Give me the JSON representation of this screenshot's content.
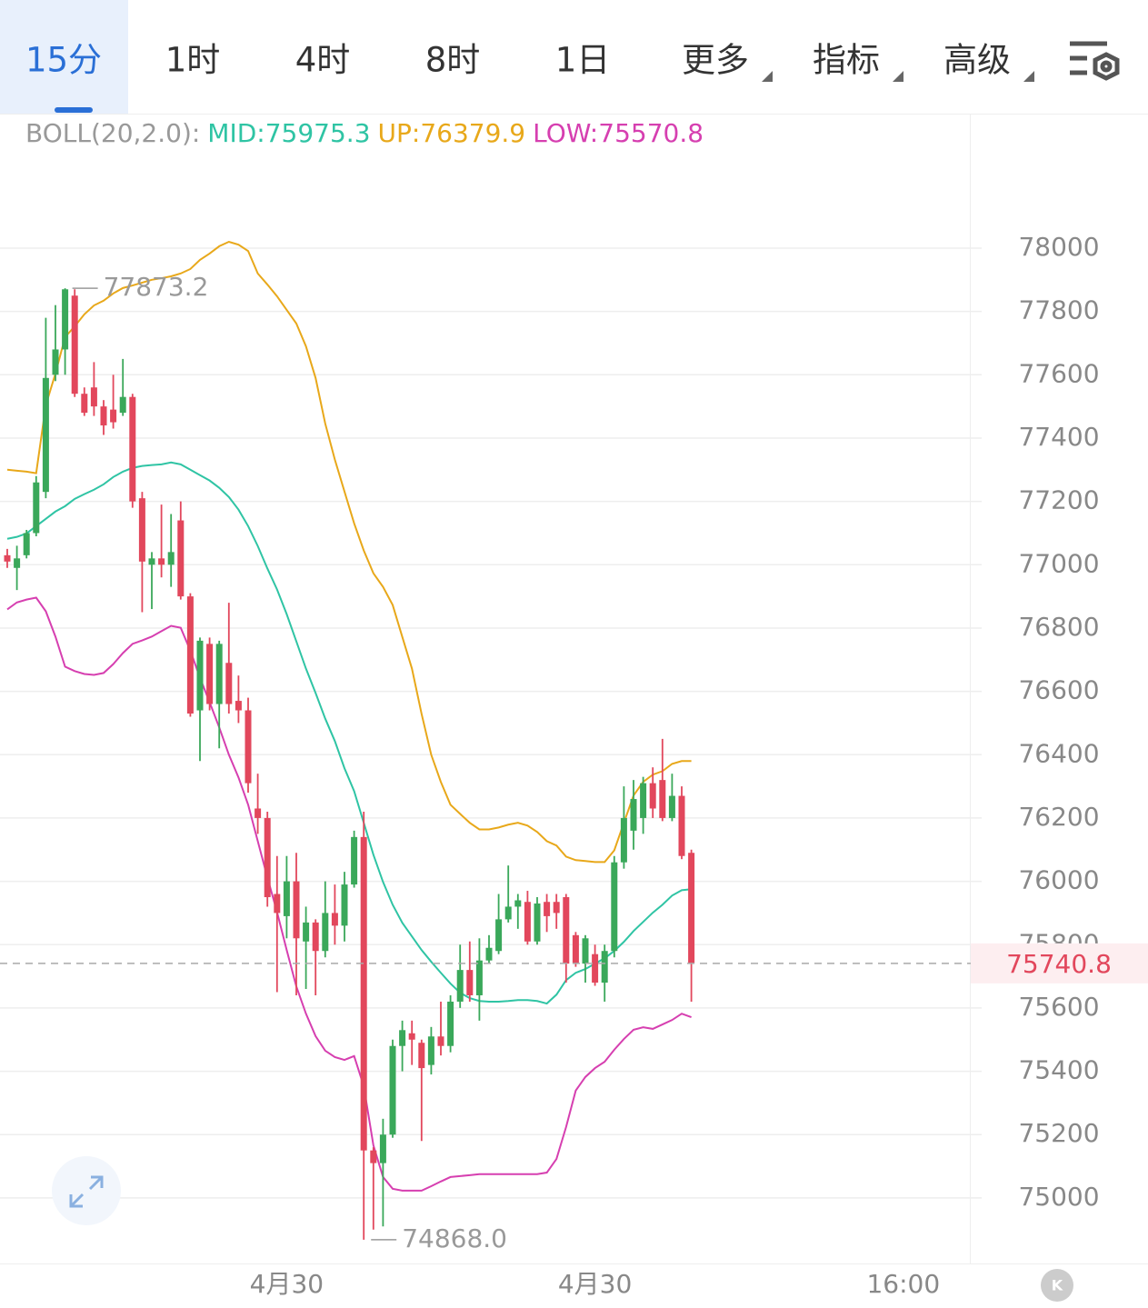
{
  "tabs": [
    "15分",
    "1时",
    "4时",
    "8时",
    "1日",
    "更多",
    "指标",
    "高级"
  ],
  "chart_data": {
    "type": "candlestick",
    "indicator_label": "BOLL(20,2.0):",
    "up_color": "#3aa85a",
    "down_color": "#e2475c",
    "open": [
      77030,
      76990,
      77030,
      77100,
      77230,
      77600,
      77680,
      77850,
      77540,
      77560,
      77500,
      77490,
      77480,
      77530,
      77210,
      77000,
      77020,
      77000,
      77140,
      76900,
      76540,
      76750,
      76560,
      76690,
      76570,
      76540,
      76230,
      76200,
      75960,
      75890,
      76000,
      75810,
      75870,
      75780,
      75900,
      75860,
      75990,
      76140,
      75150,
      75110,
      75200,
      75480,
      75520,
      75490,
      75420,
      75510,
      75480,
      75620,
      75720,
      75640,
      75750,
      75780,
      75880,
      75920,
      75935,
      75810,
      75935,
      75935,
      75950,
      75830,
      75740,
      75770,
      75680,
      75780,
      76060,
      76160,
      76200,
      76310,
      76320,
      76200,
      76270,
      76090
    ],
    "high": [
      77050,
      77060,
      77110,
      77280,
      77780,
      77820,
      77873.2,
      77870,
      77560,
      77640,
      77520,
      77600,
      77650,
      77540,
      77230,
      77040,
      77190,
      77160,
      77200,
      76910,
      76770,
      76770,
      76760,
      76880,
      76650,
      76580,
      76340,
      76220,
      76080,
      76080,
      76090,
      75920,
      75880,
      76000,
      75990,
      76030,
      76160,
      76220,
      75160,
      75250,
      75500,
      75560,
      75560,
      75500,
      75540,
      75620,
      75640,
      75800,
      75810,
      75820,
      75830,
      75960,
      76050,
      75960,
      75970,
      75950,
      75960,
      75960,
      75960,
      75840,
      75830,
      75800,
      75800,
      76080,
      76300,
      76320,
      76330,
      76360,
      76450,
      76340,
      76300,
      76100
    ],
    "low": [
      76990,
      76920,
      77020,
      77090,
      77210,
      77580,
      77600,
      77530,
      77470,
      77470,
      77410,
      77430,
      77470,
      77180,
      76850,
      76860,
      76960,
      76930,
      76890,
      76520,
      76380,
      76540,
      76420,
      76530,
      76500,
      76280,
      76150,
      75920,
      75650,
      75820,
      75640,
      75660,
      75640,
      75760,
      75800,
      75810,
      75980,
      74868,
      74900,
      74910,
      75190,
      75400,
      75420,
      75180,
      75390,
      75450,
      75460,
      75600,
      75620,
      75560,
      75740,
      75770,
      75870,
      75850,
      75800,
      75800,
      75840,
      75850,
      75680,
      75730,
      75680,
      75670,
      75620,
      75760,
      76040,
      76100,
      76150,
      76200,
      76190,
      76190,
      76070,
      75620
    ],
    "close": [
      77010,
      77020,
      77100,
      77260,
      77590,
      77680,
      77870,
      77540,
      77480,
      77500,
      77440,
      77450,
      77530,
      77200,
      77010,
      77020,
      77000,
      77040,
      76900,
      76530,
      76760,
      76560,
      76750,
      76560,
      76540,
      76310,
      76200,
      75950,
      75900,
      76000,
      75820,
      75870,
      75780,
      75900,
      75860,
      75990,
      76140,
      75150,
      75110,
      75200,
      75480,
      75530,
      75500,
      75410,
      75510,
      75480,
      75620,
      75720,
      75640,
      75750,
      75790,
      75880,
      75920,
      75940,
      75810,
      75930,
      75890,
      75900,
      75740,
      75740,
      75820,
      75680,
      75780,
      76060,
      76200,
      76260,
      76310,
      76230,
      76200,
      76270,
      76080,
      75740.8
    ],
    "series": [
      {
        "name": "MID:",
        "color": "#2fc4a4",
        "values": [
          77082,
          77088,
          77099,
          77122,
          77145,
          77168,
          77185,
          77208,
          77223,
          77237,
          77254,
          77277,
          77294,
          77306,
          77312,
          77315,
          77317,
          77323,
          77317,
          77300,
          77283,
          77266,
          77243,
          77214,
          77174,
          77122,
          77059,
          76988,
          76922,
          76844,
          76758,
          76672,
          76595,
          76514,
          76443,
          76357,
          76285,
          76185,
          76084,
          75998,
          75926,
          75869,
          75826,
          75783,
          75746,
          75711,
          75677,
          75648,
          75631,
          75622,
          75620,
          75620,
          75622,
          75625,
          75625,
          75622,
          75614,
          75642,
          75688,
          75711,
          75723,
          75740,
          75757,
          75780,
          75809,
          75843,
          75872,
          75901,
          75926,
          75955,
          75972,
          75975.3
        ]
      },
      {
        "name": "UP:",
        "color": "#e8a81a",
        "values": [
          77300,
          77297,
          77294,
          77289,
          77504,
          77604,
          77719,
          77753,
          77791,
          77819,
          77834,
          77857,
          77874,
          77882,
          77891,
          77900,
          77905,
          77911,
          77920,
          77934,
          77963,
          77983,
          78006,
          78020,
          78011,
          77991,
          77920,
          77885,
          77848,
          77805,
          77762,
          77690,
          77590,
          77446,
          77332,
          77231,
          77131,
          77045,
          76973,
          76930,
          76873,
          76772,
          76672,
          76529,
          76400,
          76314,
          76242,
          76213,
          76185,
          76164,
          76164,
          76170,
          76179,
          76185,
          76176,
          76156,
          76127,
          76113,
          76078,
          76067,
          76064,
          76061,
          76061,
          76098,
          76185,
          76271,
          76314,
          76337,
          76348,
          76371,
          76380,
          76379.9
        ]
      },
      {
        "name": "LOW:",
        "color": "#d63fb0",
        "values": [
          76859,
          76881,
          76890,
          76896,
          76853,
          76773,
          76678,
          76664,
          76655,
          76652,
          76658,
          76686,
          76721,
          76750,
          76761,
          76773,
          76790,
          76807,
          76801,
          76729,
          76643,
          76566,
          76486,
          76400,
          76328,
          76242,
          76127,
          76012,
          75903,
          75783,
          75668,
          75582,
          75511,
          75465,
          75445,
          75436,
          75448,
          75353,
          75166,
          75066,
          75029,
          75023,
          75023,
          75023,
          75037,
          75052,
          75066,
          75069,
          75072,
          75075,
          75075,
          75075,
          75075,
          75075,
          75075,
          75075,
          75080,
          75123,
          75224,
          75339,
          75382,
          75410,
          75430,
          75468,
          75502,
          75531,
          75539,
          75534,
          75548,
          75562,
          75582,
          75570.8
        ]
      }
    ],
    "annotations": [
      {
        "value": 77873.2,
        "label": "77873.2"
      },
      {
        "value": 74868,
        "label": "74868.0"
      }
    ],
    "ylim": [
      74793,
      78422
    ],
    "yticks": [
      75000,
      75200,
      75400,
      75600,
      75800,
      76000,
      76200,
      76400,
      76600,
      76800,
      77000,
      77200,
      77400,
      77600,
      77800,
      78000
    ],
    "xticks": [
      {
        "value": 29,
        "label": "4月30"
      },
      {
        "value": 61,
        "label": "4月30"
      },
      {
        "value": 93,
        "label": "16:00"
      }
    ],
    "grid": true
  }
}
